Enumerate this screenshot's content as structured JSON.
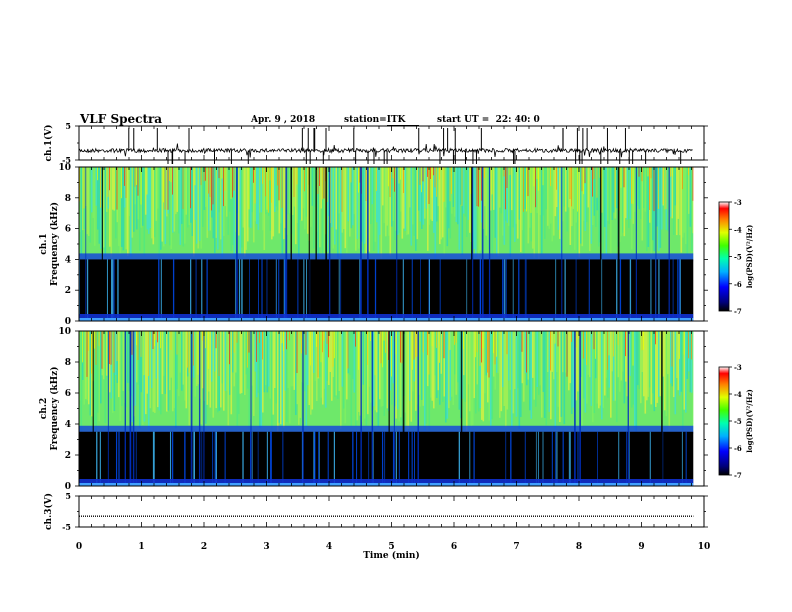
{
  "header": {
    "title": "VLF Spectra",
    "date": "Apr. 9  , 2018",
    "station_label": "station=",
    "station_value": "ITK",
    "start_label": "start  UT  =",
    "start_value": "22: 40: 0"
  },
  "chart_data": [
    {
      "type": "line",
      "name": "ch1-waveform",
      "ylabel": "ch.1(V)",
      "yticks": [
        "5",
        "-5"
      ],
      "ylim": [
        -5,
        5
      ],
      "baseline": -2.2
    },
    {
      "type": "heatmap",
      "name": "ch1-spectrogram",
      "ylabel_line1": "ch.1",
      "ylabel_line2": "Frequency (kHz)",
      "ylim": [
        0,
        10
      ],
      "yticks": [
        "0",
        "2",
        "4",
        "6",
        "8",
        "10"
      ],
      "cutoff_khz": 4.0,
      "colorbar": {
        "label": "log(PSD)(V²/Hz)",
        "ticks": [
          "-3",
          "-4",
          "-5",
          "-6",
          "-7"
        ],
        "range": [
          -7,
          -3
        ]
      }
    },
    {
      "type": "heatmap",
      "name": "ch2-spectrogram",
      "ylabel_line1": "ch.2",
      "ylabel_line2": "Frequency (kHz)",
      "ylim": [
        0,
        10
      ],
      "yticks": [
        "0",
        "2",
        "4",
        "6",
        "8",
        "10"
      ],
      "cutoff_khz": 3.5,
      "colorbar": {
        "label": "log(PSD)(V²/Hz)",
        "ticks": [
          "-3",
          "-4",
          "-5",
          "-6",
          "-7"
        ],
        "range": [
          -7,
          -3
        ]
      }
    },
    {
      "type": "line",
      "name": "ch3-waveform",
      "ylabel": "ch.3(V)",
      "yticks": [
        "5",
        "-5"
      ],
      "ylim": [
        -5,
        5
      ],
      "baseline": -1.5
    }
  ],
  "xaxis": {
    "label": "Time  (min)",
    "ticks": [
      "0",
      "1",
      "2",
      "3",
      "4",
      "5",
      "6",
      "7",
      "8",
      "9",
      "10"
    ],
    "xlim": [
      0,
      10
    ],
    "data_end": 9.83
  }
}
